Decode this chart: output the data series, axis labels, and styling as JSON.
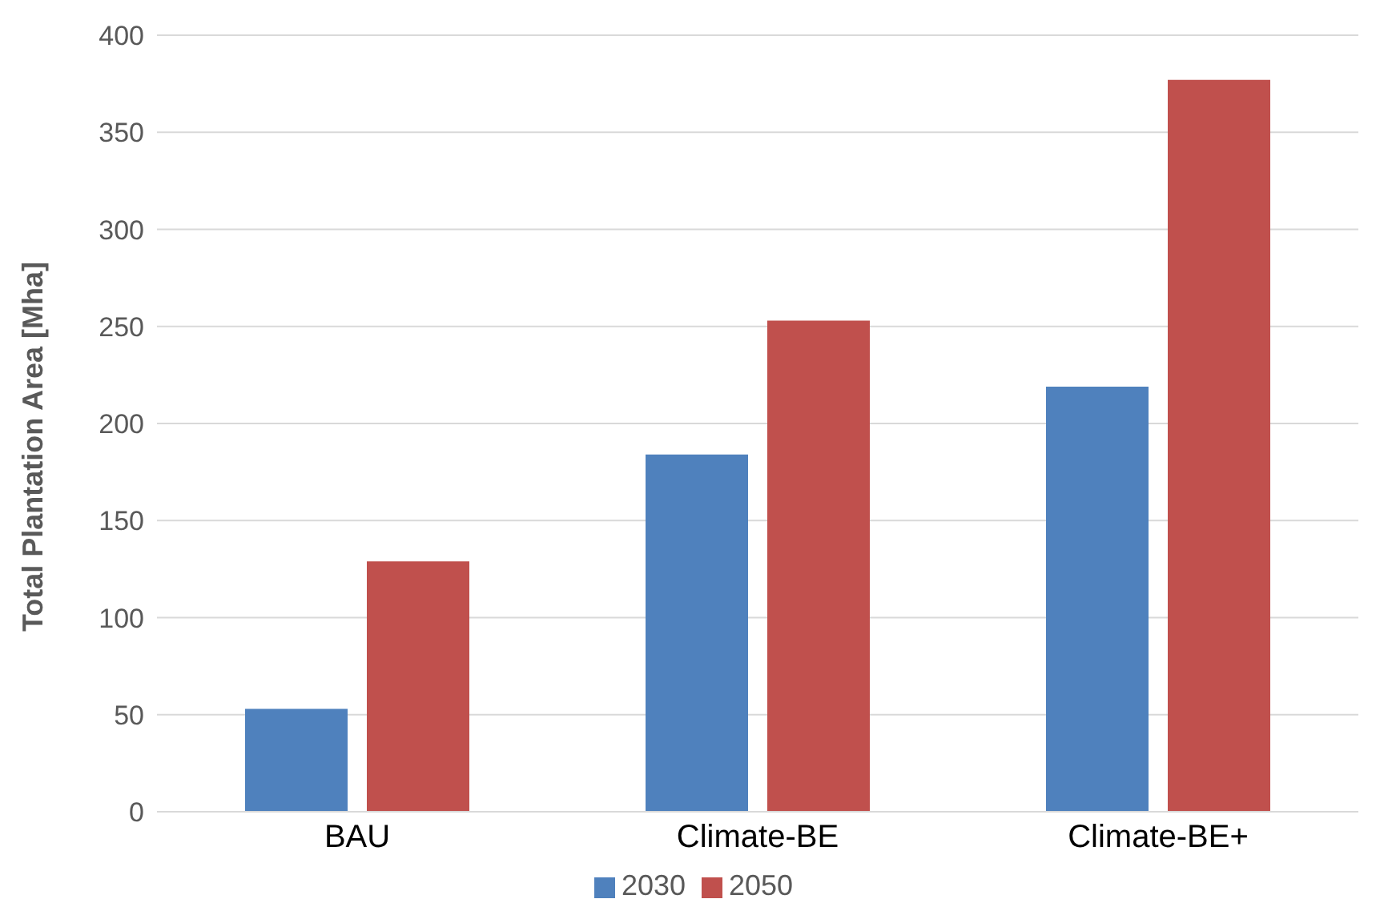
{
  "chart_data": {
    "type": "bar",
    "ylabel": "Total Plantation Area [Mha]",
    "categories": [
      "BAU",
      "Climate-BE",
      "Climate-BE+"
    ],
    "series": [
      {
        "name": "2030",
        "color": "#4f81bd",
        "values": [
          53,
          184,
          219
        ]
      },
      {
        "name": "2050",
        "color": "#c0504d",
        "values": [
          129,
          253,
          377
        ]
      }
    ],
    "ylim": [
      0,
      400
    ],
    "yticks": [
      0,
      50,
      100,
      150,
      200,
      250,
      300,
      350,
      400
    ],
    "grid": "y",
    "legend": "bottom"
  }
}
